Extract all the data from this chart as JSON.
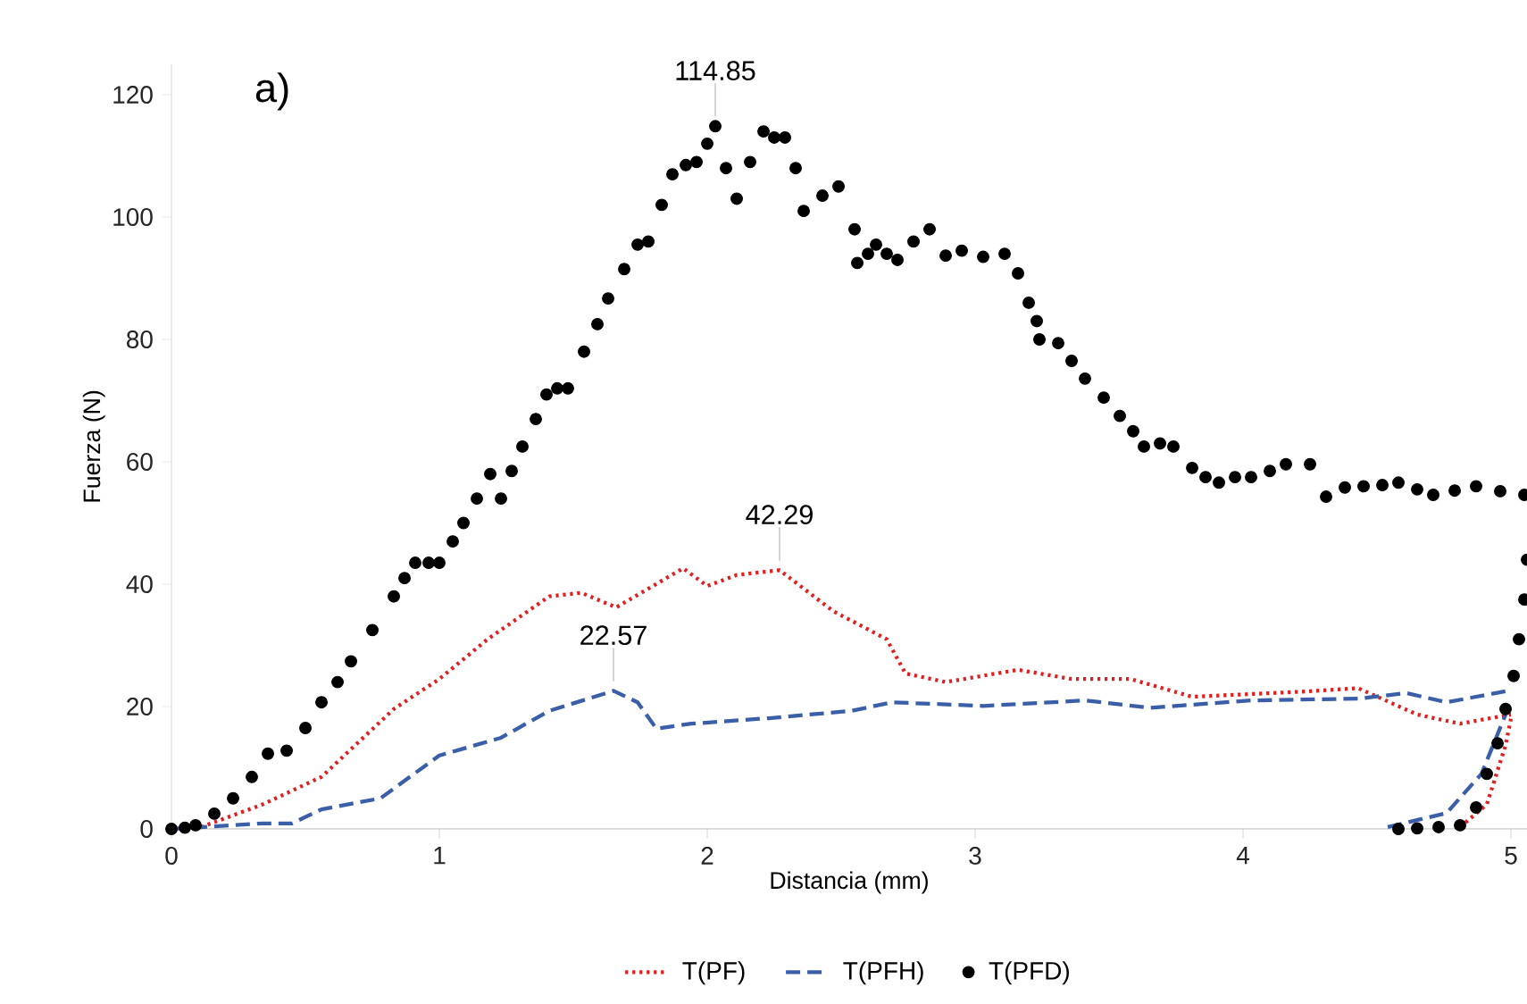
{
  "chart_data": {
    "type": "line",
    "xlabel": "Distancia (mm)",
    "ylabel": "Fuerza (N)",
    "xlim": [
      0,
      5.06
    ],
    "ylim": [
      0,
      125
    ],
    "xticks": [
      0,
      1,
      2,
      3,
      4,
      5
    ],
    "yticks": [
      0,
      20,
      40,
      60,
      80,
      100,
      120
    ],
    "grid": false,
    "legend": "bottom",
    "annotations": [
      "a)",
      {
        "text": "114.85",
        "x": 2.03,
        "y": 114.85
      },
      {
        "text": "42.29",
        "x": 2.27,
        "y": 42.29
      },
      {
        "text": "22.57",
        "x": 1.65,
        "y": 22.57
      }
    ],
    "series": [
      {
        "name": "T(PF)",
        "line_style": "dotted",
        "color": "#e02020",
        "x": [
          0.11,
          0.34,
          0.56,
          0.83,
          1.0,
          1.18,
          1.41,
          1.53,
          1.66,
          1.91,
          2.0,
          2.11,
          2.27,
          2.47,
          2.67,
          2.74,
          2.89,
          3.16,
          3.36,
          3.58,
          3.81,
          4.25,
          4.43,
          4.65,
          4.81,
          5.0,
          null,
          4.81,
          4.91,
          4.98,
          5.0
        ],
        "values": [
          0.3,
          4,
          8.5,
          19.6,
          24.5,
          31,
          38,
          38.6,
          36.2,
          42.6,
          39.7,
          41.5,
          42.29,
          35.6,
          31,
          25.4,
          24,
          26,
          24.5,
          24.5,
          21.6,
          22.5,
          23,
          18.7,
          17.2,
          18.7,
          null,
          0.3,
          4,
          13.7,
          18
        ]
      },
      {
        "name": "T(PFH)",
        "line_style": "dashed",
        "color": "#3a5fa8",
        "x": [
          0,
          0.34,
          0.45,
          0.56,
          0.78,
          1.0,
          1.23,
          1.41,
          1.65,
          1.74,
          1.81,
          1.94,
          2.23,
          2.54,
          2.69,
          3.03,
          3.41,
          3.65,
          4.03,
          4.43,
          4.61,
          4.76,
          4.98,
          null,
          4.54,
          4.76,
          4.89,
          4.98
        ],
        "values": [
          0,
          0.9,
          0.9,
          3.2,
          5,
          12,
          14.9,
          19.3,
          22.57,
          20.7,
          16.4,
          17.2,
          18.1,
          19.3,
          20.7,
          20.1,
          21,
          19.8,
          21,
          21.3,
          22.2,
          20.7,
          22.5,
          null,
          0.3,
          2.6,
          9,
          18.7
        ]
      },
      {
        "name": "T(PFD)",
        "type": "scatter",
        "marker": "circle",
        "color": "#000000",
        "x": [
          0,
          0.05,
          0.09,
          0.16,
          0.23,
          0.3,
          0.36,
          0.43,
          0.5,
          0.56,
          0.62,
          0.67,
          0.75,
          0.83,
          0.87,
          0.91,
          0.96,
          1.0,
          1.05,
          1.09,
          1.14,
          1.19,
          1.23,
          1.27,
          1.31,
          1.36,
          1.4,
          1.44,
          1.48,
          1.54,
          1.59,
          1.63,
          1.69,
          1.74,
          1.78,
          1.83,
          1.87,
          1.92,
          1.96,
          2.0,
          2.03,
          2.07,
          2.11,
          2.16,
          2.21,
          2.25,
          2.29,
          2.33,
          2.36,
          2.43,
          2.49,
          2.55,
          2.56,
          2.6,
          2.63,
          2.67,
          2.71,
          2.77,
          2.83,
          2.89,
          2.95,
          3.03,
          3.11,
          3.16,
          3.2,
          3.23,
          3.24,
          3.31,
          3.36,
          3.41,
          3.48,
          3.54,
          3.59,
          3.63,
          3.69,
          3.74,
          3.81,
          3.86,
          3.91,
          3.97,
          4.03,
          4.1,
          4.16,
          4.25,
          4.31,
          4.38,
          4.45,
          4.52,
          4.58,
          4.65,
          4.71,
          4.79,
          4.87,
          4.96,
          5.05,
          4.58,
          4.65,
          4.73,
          4.81,
          4.87,
          4.91,
          4.95,
          4.98,
          5.01,
          5.03,
          5.05,
          5.06
        ],
        "values": [
          0,
          0.2,
          0.6,
          2.5,
          5,
          8.5,
          12.3,
          12.8,
          16.5,
          20.7,
          24,
          27.4,
          32.5,
          38,
          41,
          43.5,
          43.5,
          43.5,
          47,
          50,
          54,
          58,
          54,
          58.5,
          62.5,
          67,
          71,
          72,
          72,
          78,
          82.5,
          86.7,
          91.5,
          95.5,
          96,
          102,
          107,
          108.5,
          109,
          112,
          114.85,
          108,
          103,
          109,
          114,
          113,
          113,
          108,
          101,
          103.5,
          105,
          98,
          92.5,
          94,
          95.5,
          94,
          93,
          96,
          98,
          93.7,
          94.5,
          93.5,
          94,
          90.8,
          86,
          83,
          80,
          79.4,
          76.5,
          73.6,
          70.5,
          67.5,
          65,
          62.5,
          63,
          62.5,
          59,
          57.5,
          56.6,
          57.5,
          57.5,
          58.5,
          59.6,
          59.6,
          54.3,
          55.8,
          56,
          56.2,
          56.6,
          55.5,
          54.6,
          55.3,
          56,
          55.2,
          54.6,
          0,
          0.1,
          0.3,
          0.6,
          3.5,
          9,
          14,
          19.6,
          25,
          31,
          37.5,
          44
        ]
      }
    ]
  }
}
